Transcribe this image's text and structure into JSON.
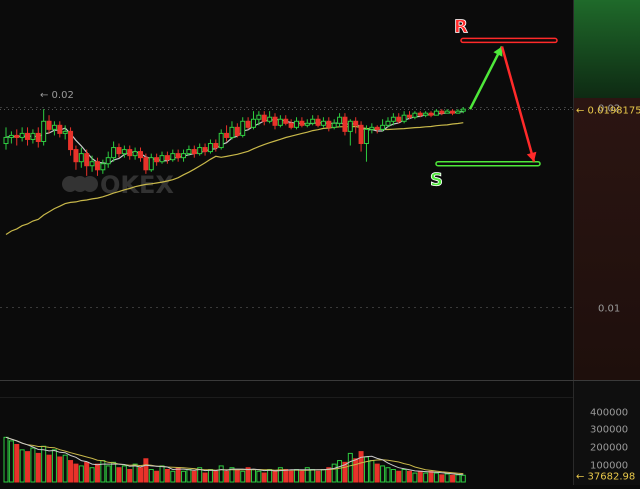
{
  "chart_data": {
    "type": "candlestick",
    "price_axis": {
      "ticks": [
        "0.02",
        "0.01"
      ],
      "tick_values": [
        0.0199,
        0.01
      ],
      "last_price_label": "0.01981755",
      "range": [
        0.0064,
        0.0252
      ]
    },
    "high_label": "0.02",
    "watermark": "OKEX",
    "levels": [
      {
        "label": "R",
        "kind": "resistance",
        "price": 0.0232,
        "color": "#ff2a2a"
      },
      {
        "label": "S",
        "kind": "support",
        "price": 0.0171,
        "color": "#4ee83a"
      }
    ],
    "projection": {
      "points": [
        {
          "step": 0,
          "price": 0.0198
        },
        {
          "step": 5,
          "price": 0.0229
        },
        {
          "step": 10,
          "price": 0.0172
        }
      ],
      "colors": [
        "#4ee83a",
        "#ff2a2a"
      ]
    },
    "candles": [
      [
        0.0181,
        0.0184,
        0.0189,
        0.0178
      ],
      [
        0.0184,
        0.0185,
        0.0187,
        0.0181
      ],
      [
        0.0185,
        0.0184,
        0.0188,
        0.018
      ],
      [
        0.0184,
        0.0186,
        0.0189,
        0.0182
      ],
      [
        0.0186,
        0.0183,
        0.0189,
        0.018
      ],
      [
        0.0183,
        0.0186,
        0.0188,
        0.0181
      ],
      [
        0.0186,
        0.0182,
        0.0189,
        0.0179
      ],
      [
        0.0182,
        0.0192,
        0.0198,
        0.018
      ],
      [
        0.0192,
        0.0188,
        0.0195,
        0.0186
      ],
      [
        0.0188,
        0.019,
        0.0192,
        0.0185
      ],
      [
        0.019,
        0.0186,
        0.0192,
        0.0184
      ],
      [
        0.0186,
        0.0187,
        0.019,
        0.0183
      ],
      [
        0.0187,
        0.0178,
        0.0189,
        0.0175
      ],
      [
        0.0178,
        0.0172,
        0.018,
        0.0168
      ],
      [
        0.0172,
        0.0176,
        0.0179,
        0.0169
      ],
      [
        0.0176,
        0.017,
        0.0178,
        0.0165
      ],
      [
        0.017,
        0.0172,
        0.0175,
        0.0167
      ],
      [
        0.0172,
        0.0168,
        0.0174,
        0.0165
      ],
      [
        0.0168,
        0.0171,
        0.0173,
        0.0166
      ],
      [
        0.0171,
        0.0174,
        0.0177,
        0.0169
      ],
      [
        0.0174,
        0.0179,
        0.0182,
        0.0172
      ],
      [
        0.0179,
        0.0176,
        0.0181,
        0.0174
      ],
      [
        0.0176,
        0.0178,
        0.018,
        0.0174
      ],
      [
        0.0178,
        0.0175,
        0.018,
        0.0173
      ],
      [
        0.0175,
        0.0177,
        0.0179,
        0.0173
      ],
      [
        0.0177,
        0.0174,
        0.0179,
        0.0172
      ],
      [
        0.0174,
        0.0168,
        0.0176,
        0.0166
      ],
      [
        0.0168,
        0.0174,
        0.0176,
        0.0167
      ],
      [
        0.0174,
        0.0172,
        0.0176,
        0.017
      ],
      [
        0.0172,
        0.0175,
        0.0177,
        0.0171
      ],
      [
        0.0175,
        0.0173,
        0.0177,
        0.0171
      ],
      [
        0.0173,
        0.0176,
        0.0178,
        0.0172
      ],
      [
        0.0176,
        0.0174,
        0.0178,
        0.0172
      ],
      [
        0.0174,
        0.0176,
        0.0178,
        0.0172
      ],
      [
        0.0176,
        0.0178,
        0.018,
        0.0175
      ],
      [
        0.0178,
        0.0176,
        0.018,
        0.0174
      ],
      [
        0.0176,
        0.0179,
        0.0181,
        0.0175
      ],
      [
        0.0179,
        0.0177,
        0.0181,
        0.0175
      ],
      [
        0.0177,
        0.0181,
        0.0183,
        0.0176
      ],
      [
        0.0181,
        0.0179,
        0.0183,
        0.0177
      ],
      [
        0.0179,
        0.0186,
        0.0188,
        0.0178
      ],
      [
        0.0186,
        0.0184,
        0.019,
        0.0182
      ],
      [
        0.0184,
        0.0189,
        0.0192,
        0.0183
      ],
      [
        0.0189,
        0.0185,
        0.0191,
        0.0184
      ],
      [
        0.0185,
        0.0192,
        0.0194,
        0.0184
      ],
      [
        0.0192,
        0.0189,
        0.0194,
        0.0188
      ],
      [
        0.0189,
        0.0193,
        0.0197,
        0.0188
      ],
      [
        0.0193,
        0.0195,
        0.0197,
        0.019
      ],
      [
        0.0195,
        0.0192,
        0.0197,
        0.019
      ],
      [
        0.0192,
        0.0194,
        0.0197,
        0.0191
      ],
      [
        0.0194,
        0.019,
        0.0196,
        0.0188
      ],
      [
        0.019,
        0.0193,
        0.0195,
        0.0189
      ],
      [
        0.0193,
        0.0191,
        0.0195,
        0.019
      ],
      [
        0.0191,
        0.0189,
        0.0193,
        0.0188
      ],
      [
        0.0189,
        0.0192,
        0.0194,
        0.0188
      ],
      [
        0.0192,
        0.019,
        0.0194,
        0.0189
      ],
      [
        0.019,
        0.0191,
        0.0193,
        0.0189
      ],
      [
        0.0191,
        0.0193,
        0.0195,
        0.019
      ],
      [
        0.0193,
        0.019,
        0.0195,
        0.0189
      ],
      [
        0.019,
        0.0192,
        0.0194,
        0.0189
      ],
      [
        0.0192,
        0.0189,
        0.0194,
        0.0187
      ],
      [
        0.0189,
        0.0191,
        0.0193,
        0.0188
      ],
      [
        0.0191,
        0.0194,
        0.0196,
        0.0189
      ],
      [
        0.0194,
        0.0187,
        0.0196,
        0.0185
      ],
      [
        0.0187,
        0.0192,
        0.0193,
        0.018
      ],
      [
        0.0192,
        0.019,
        0.0194,
        0.0186
      ],
      [
        0.019,
        0.0181,
        0.0192,
        0.0177
      ],
      [
        0.0181,
        0.0188,
        0.019,
        0.0172
      ],
      [
        0.0188,
        0.0189,
        0.0191,
        0.0186
      ],
      [
        0.0189,
        0.0188,
        0.019,
        0.0186
      ],
      [
        0.0188,
        0.019,
        0.0193,
        0.0187
      ],
      [
        0.019,
        0.0192,
        0.0194,
        0.0189
      ],
      [
        0.0192,
        0.0194,
        0.0196,
        0.019
      ],
      [
        0.0194,
        0.0192,
        0.0196,
        0.0191
      ],
      [
        0.0192,
        0.0195,
        0.0197,
        0.0191
      ],
      [
        0.0195,
        0.0194,
        0.0197,
        0.0193
      ],
      [
        0.0194,
        0.0196,
        0.0197,
        0.0193
      ],
      [
        0.0196,
        0.0195,
        0.0197,
        0.0194
      ],
      [
        0.0195,
        0.0196,
        0.0197,
        0.0194
      ],
      [
        0.0196,
        0.0195,
        0.0197,
        0.0194
      ],
      [
        0.0195,
        0.0197,
        0.0198,
        0.0195
      ],
      [
        0.0197,
        0.0196,
        0.0198,
        0.0195
      ],
      [
        0.0196,
        0.0197,
        0.0198,
        0.0196
      ],
      [
        0.0197,
        0.0196,
        0.0198,
        0.0195
      ],
      [
        0.0196,
        0.0197,
        0.0198,
        0.0196
      ],
      [
        0.0197,
        0.0198,
        0.0199,
        0.0196
      ]
    ],
    "ma_fast_color": "#c9c9c9",
    "ma_slow_color": "#c8b84a",
    "up_color": "#2ecc40",
    "down_color": "#e8322a",
    "volume_axis": {
      "ticks": [
        "400000",
        "300000",
        "200000",
        "100000"
      ],
      "tick_values": [
        400000,
        300000,
        200000,
        100000
      ],
      "max": 470000,
      "last_label": "37682.98",
      "last_value": 37682.98
    },
    "volumes": [
      250000,
      230000,
      210000,
      180000,
      170000,
      190000,
      160000,
      200000,
      150000,
      180000,
      140000,
      150000,
      120000,
      100000,
      90000,
      110000,
      80000,
      100000,
      120000,
      90000,
      110000,
      80000,
      90000,
      70000,
      100000,
      80000,
      130000,
      70000,
      60000,
      90000,
      70000,
      60000,
      80000,
      60000,
      70000,
      60000,
      80000,
      50000,
      70000,
      60000,
      90000,
      60000,
      80000,
      70000,
      60000,
      80000,
      70000,
      60000,
      50000,
      70000,
      60000,
      80000,
      70000,
      60000,
      70000,
      60000,
      80000,
      70000,
      60000,
      70000,
      80000,
      100000,
      120000,
      110000,
      160000,
      130000,
      170000,
      140000,
      120000,
      100000,
      90000,
      80000,
      70000,
      60000,
      70000,
      60000,
      50000,
      60000,
      50000,
      60000,
      50000,
      40000,
      45000,
      38000,
      40000,
      37683
    ]
  }
}
